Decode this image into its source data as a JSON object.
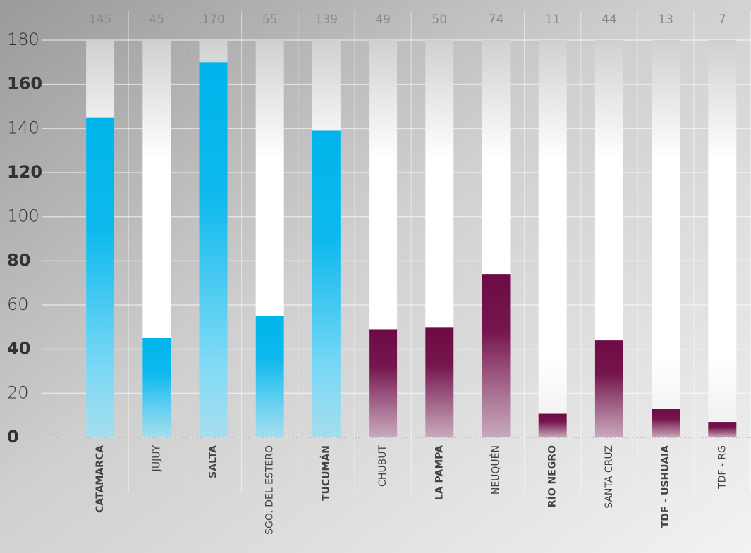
{
  "chart_data": {
    "type": "bar",
    "categories": [
      "CATAMARCA",
      "JUJUY",
      "SALTA",
      "SGO. DEL ESTERO",
      "TUCUMÁN",
      "CHUBUT",
      "LA PAMPA",
      "NEUQUÉN",
      "RÍO NEGRO",
      "SANTA CRUZ",
      "TDF - USHUAIA",
      "TDF - RG"
    ],
    "values": [
      145,
      45,
      170,
      55,
      139,
      49,
      50,
      74,
      11,
      44,
      13,
      7
    ],
    "colors": [
      "#00b5ec",
      "#00b5ec",
      "#00b5ec",
      "#00b5ec",
      "#00b5ec",
      "#6e0a45",
      "#6e0a45",
      "#6e0a45",
      "#6e0a45",
      "#6e0a45",
      "#6e0a45",
      "#6e0a45"
    ],
    "ylim": [
      0,
      180
    ],
    "yticks": [
      0,
      20,
      40,
      60,
      80,
      100,
      120,
      140,
      160,
      180
    ],
    "grid": true
  }
}
